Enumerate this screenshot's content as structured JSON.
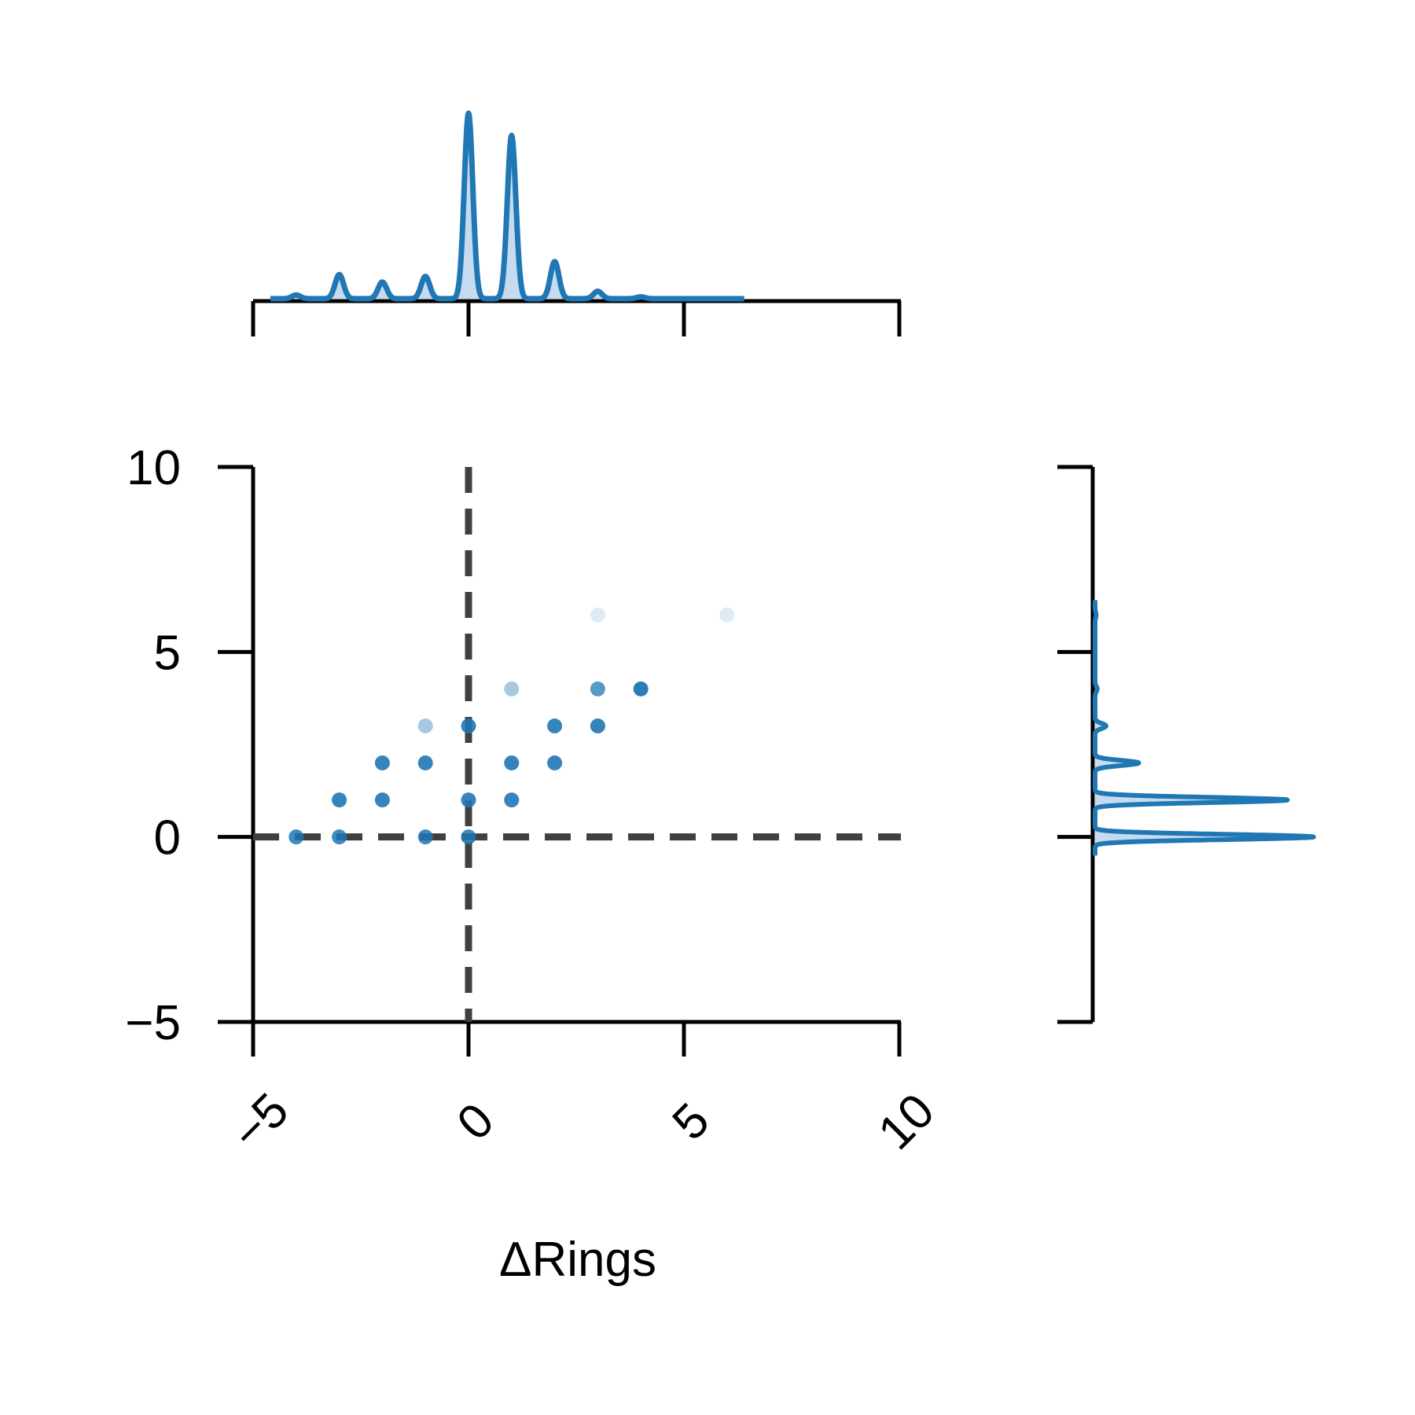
{
  "chart_data": {
    "type": "scatter",
    "xlabel": "ΔRings",
    "ylabel": "",
    "xlim": [
      -5,
      10
    ],
    "ylim": [
      -5,
      10
    ],
    "x_ticks": [
      -5,
      0,
      5,
      10
    ],
    "x_tick_labels": [
      "−5",
      "0",
      "5",
      "10"
    ],
    "y_ticks": [
      -5,
      0,
      5,
      10
    ],
    "y_tick_labels": [
      "−5",
      "0",
      "5",
      "10"
    ],
    "reference_lines": {
      "x": 0,
      "y": 0,
      "style": "dashed",
      "color": "#404040"
    },
    "points": [
      {
        "x": -4,
        "y": 0,
        "density": 0.85
      },
      {
        "x": -3,
        "y": 0,
        "density": 0.85
      },
      {
        "x": -3,
        "y": 1,
        "density": 0.9
      },
      {
        "x": -2,
        "y": 1,
        "density": 0.9
      },
      {
        "x": -2,
        "y": 2,
        "density": 0.9
      },
      {
        "x": -1,
        "y": 0,
        "density": 0.85
      },
      {
        "x": -1,
        "y": 2,
        "density": 0.9
      },
      {
        "x": -1,
        "y": 3,
        "density": 0.4
      },
      {
        "x": 0,
        "y": 0,
        "density": 0.85
      },
      {
        "x": 0,
        "y": 1,
        "density": 0.9
      },
      {
        "x": 0,
        "y": 3,
        "density": 0.9
      },
      {
        "x": 1,
        "y": 1,
        "density": 0.9
      },
      {
        "x": 1,
        "y": 2,
        "density": 0.9
      },
      {
        "x": 1,
        "y": 4,
        "density": 0.4
      },
      {
        "x": 2,
        "y": 2,
        "density": 0.9
      },
      {
        "x": 2,
        "y": 3,
        "density": 0.9
      },
      {
        "x": 3,
        "y": 3,
        "density": 0.9
      },
      {
        "x": 3,
        "y": 4,
        "density": 0.75
      },
      {
        "x": 3,
        "y": 6,
        "density": 0.15
      },
      {
        "x": 4,
        "y": 4,
        "density": 0.95
      },
      {
        "x": 6,
        "y": 6,
        "density": 0.15
      }
    ],
    "marginal_x": {
      "type": "kde",
      "peaks": [
        {
          "x": -4,
          "height": 0.02
        },
        {
          "x": -3,
          "height": 0.13
        },
        {
          "x": -2,
          "height": 0.09
        },
        {
          "x": -1,
          "height": 0.12
        },
        {
          "x": 0,
          "height": 1.0
        },
        {
          "x": 1,
          "height": 0.88
        },
        {
          "x": 2,
          "height": 0.2
        },
        {
          "x": 3,
          "height": 0.04
        },
        {
          "x": 4,
          "height": 0.01
        }
      ]
    },
    "marginal_y": {
      "type": "kde",
      "peaks": [
        {
          "y": 0,
          "height": 1.0
        },
        {
          "y": 1,
          "height": 0.88
        },
        {
          "y": 2,
          "height": 0.2
        },
        {
          "y": 3,
          "height": 0.05
        },
        {
          "y": 4,
          "height": 0.01
        },
        {
          "y": 6,
          "height": 0.005
        }
      ]
    },
    "colors": {
      "series": "#1f77b4",
      "fill": "#c6dbef",
      "reference": "#404040",
      "axis": "#000000"
    }
  }
}
